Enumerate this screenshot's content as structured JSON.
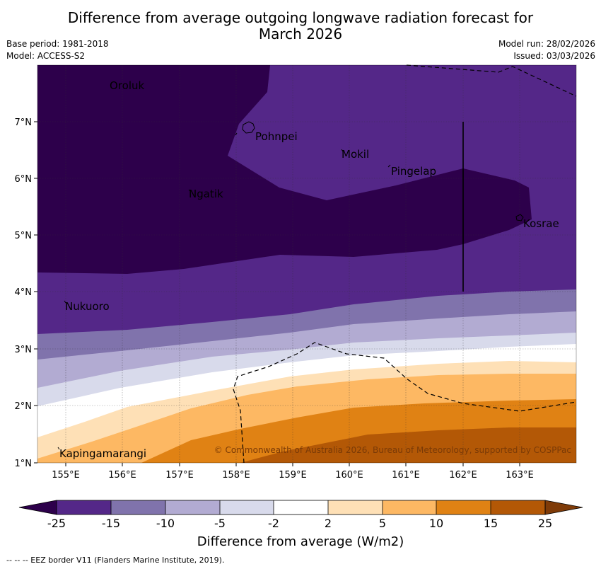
{
  "title_line1": "Difference from average outgoing longwave radiation forecast for",
  "title_line2": "March 2026",
  "base_period": "Base period: 1981-2018",
  "model": "Model: ACCESS-S2",
  "model_run": "Model run: 28/02/2026",
  "issued": "Issued: 03/03/2026",
  "copyright": "© Commonwealth of Australia 2026, Bureau of Meteorology, supported by COSPPac",
  "map": {
    "lon_ticks": [
      "155°E",
      "156°E",
      "157°E",
      "158°E",
      "159°E",
      "160°E",
      "161°E",
      "162°E",
      "163°E"
    ],
    "lat_ticks": [
      "7°N",
      "6°N",
      "5°N",
      "4°N",
      "3°N",
      "2°N",
      "1°N"
    ],
    "places": {
      "oroluk": "Oroluk",
      "pohnpei": "Pohnpei",
      "mokil": "Mokil",
      "pingelap": "Pingelap",
      "ngatik": "Ngatik",
      "kosrae": "Kosrae",
      "nukuoro": "Nukuoro",
      "kapingamarangi": "Kapingamarangi"
    }
  },
  "colorbar": {
    "title": "Difference from average (W/m2)",
    "ticks": [
      "-25",
      "-15",
      "-10",
      "-5",
      "-2",
      "2",
      "5",
      "10",
      "15",
      "25"
    ],
    "colors": {
      "lt25": "#2d004b",
      "m25": "#542788",
      "m15": "#8073ac",
      "m10": "#b2abd2",
      "m5": "#d8daeb",
      "m2": "#ffffff",
      "p2": "#fee0b6",
      "p5": "#fdb863",
      "p10": "#e08214",
      "p15": "#b35806",
      "gt25": "#7f3b08"
    }
  },
  "footnote": "--  --  -- EEZ border V11 (Flanders Marine Institute, 2019)."
}
